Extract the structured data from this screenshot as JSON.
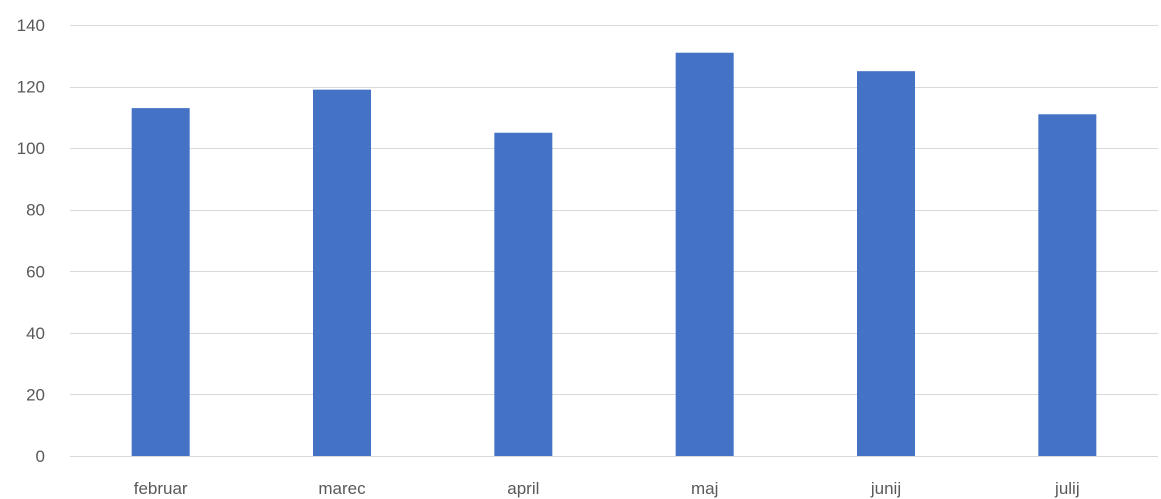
{
  "chart_data": {
    "type": "bar",
    "title": "",
    "xlabel": "",
    "ylabel": "",
    "categories": [
      "februar",
      "marec",
      "april",
      "maj",
      "junij",
      "julij"
    ],
    "series": [
      {
        "values": [
          113,
          119,
          105,
          131,
          125,
          111
        ]
      }
    ],
    "ylim": [
      0,
      140
    ],
    "yticks": [
      0,
      20,
      40,
      60,
      80,
      100,
      120,
      140
    ],
    "grid": true,
    "legend": "none",
    "colors": {
      "bar": "#4472c4",
      "grid": "#d9d9d9",
      "text": "#595959"
    }
  }
}
